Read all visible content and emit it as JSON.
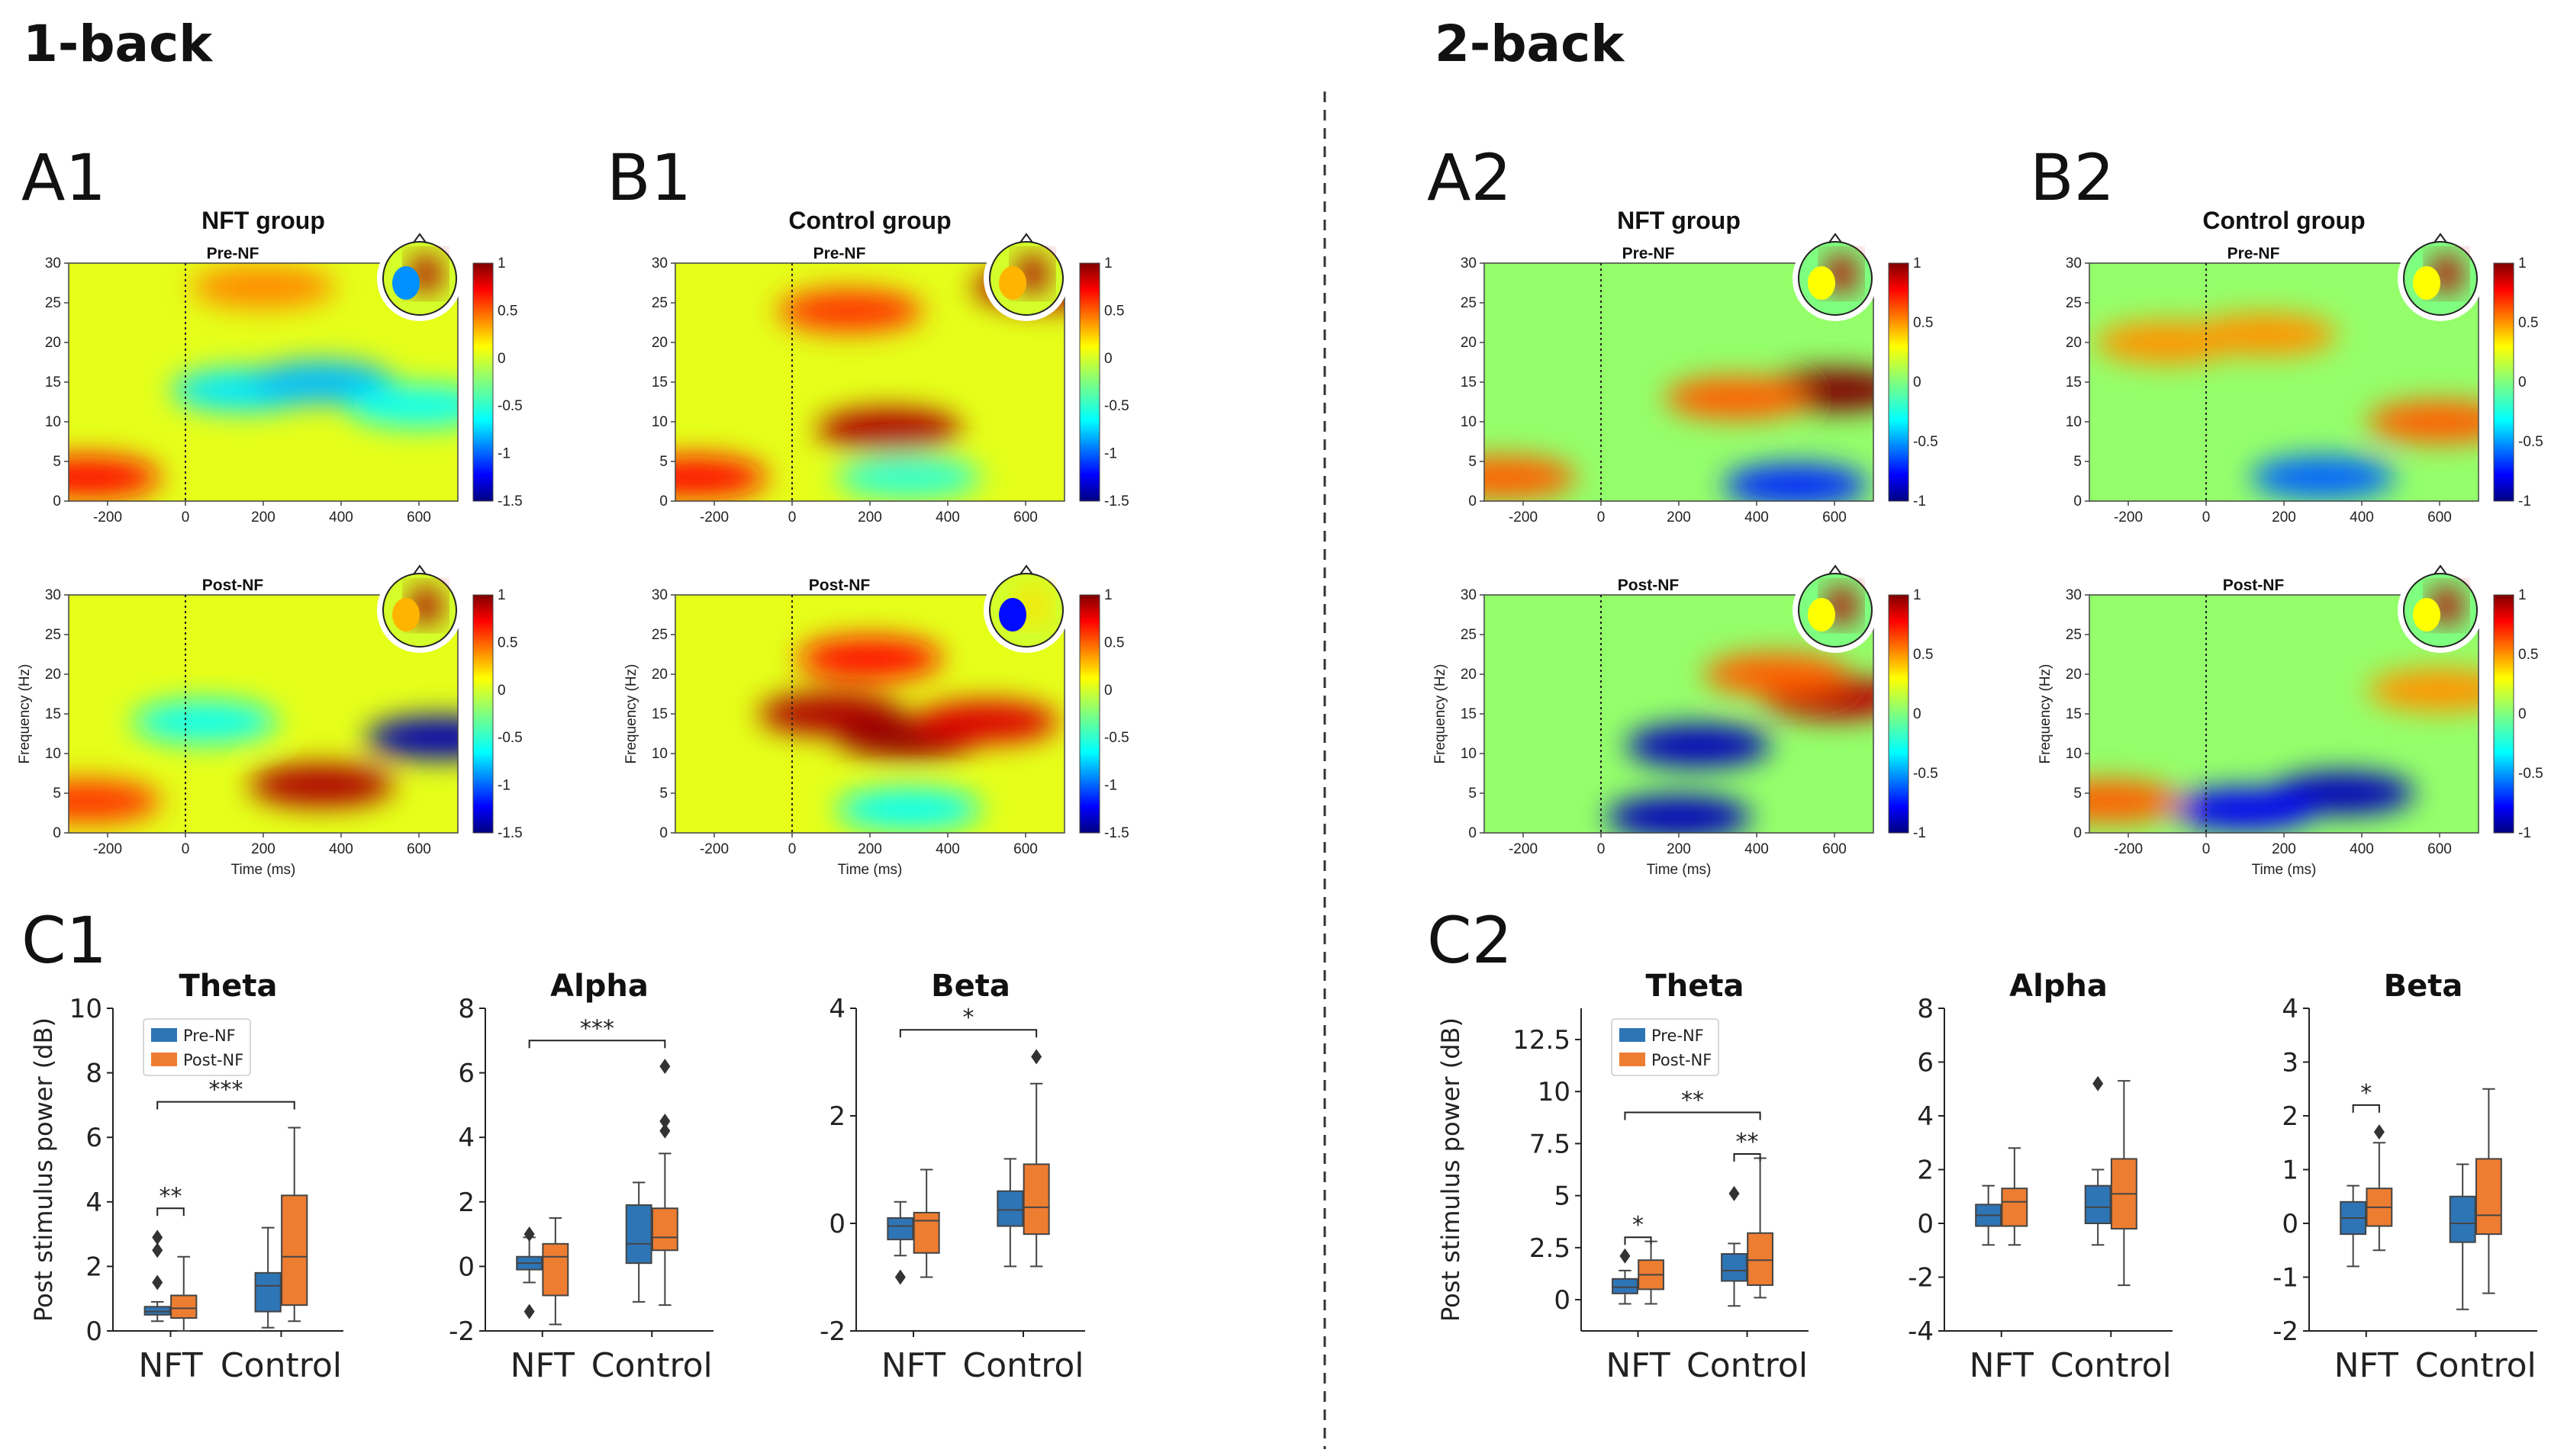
{
  "sections": [
    "1-back",
    "2-back"
  ],
  "colorbar_ticks": {
    "range_1back": [
      "1",
      "0.5",
      "0",
      "-0.5",
      "-1",
      "-1.5"
    ],
    "range_2back": [
      "1",
      "0.5",
      "0",
      "-0.5",
      "-1"
    ]
  },
  "tf_panels": {
    "labels": [
      "A1",
      "B1",
      "A2",
      "B2"
    ],
    "titles": [
      "NFT group",
      "Control group",
      "NFT group",
      "Control group"
    ],
    "row_titles": [
      "Pre-NF",
      "Post-NF"
    ],
    "xlabel": "Time (ms)",
    "ylabel": "Frequency (Hz)",
    "xticks": [
      "-200",
      "0",
      "200",
      "400",
      "600"
    ],
    "yticks": [
      "0",
      "5",
      "10",
      "15",
      "20",
      "25",
      "30"
    ]
  },
  "box_panels": {
    "labels": [
      "C1",
      "C2"
    ],
    "ylabel": "Post stimulus power (dB)",
    "legend": [
      "Pre-NF",
      "Post-NF"
    ],
    "categories": [
      "NFT",
      "Control"
    ],
    "colors": {
      "pre": "#2e75b6",
      "post": "#ed7d31"
    }
  },
  "chart_data": [
    {
      "type": "heatmap",
      "panel": "A1",
      "group": "NFT group",
      "condition": "Pre-NF",
      "task": "1-back",
      "x_range_ms": [
        -300,
        700
      ],
      "y_range_hz": [
        0,
        30
      ],
      "color_range": [
        -1.5,
        1
      ],
      "description_blobs": [
        {
          "t": 150,
          "f": 14,
          "v": -0.7
        },
        {
          "t": 350,
          "f": 15,
          "v": -0.8
        },
        {
          "t": 600,
          "f": 12,
          "v": -0.6
        },
        {
          "t": -250,
          "f": 3,
          "v": 0.7
        },
        {
          "t": 200,
          "f": 27,
          "v": 0.4
        }
      ]
    },
    {
      "type": "heatmap",
      "panel": "A1",
      "group": "NFT group",
      "condition": "Post-NF",
      "task": "1-back",
      "x_range_ms": [
        -300,
        700
      ],
      "y_range_hz": [
        0,
        30
      ],
      "color_range": [
        -1.5,
        1
      ],
      "description_blobs": [
        {
          "t": 350,
          "f": 6,
          "v": 0.9
        },
        {
          "t": 650,
          "f": 12,
          "v": -1.4
        },
        {
          "t": 50,
          "f": 14,
          "v": -0.6
        },
        {
          "t": -250,
          "f": 4,
          "v": 0.6
        }
      ]
    },
    {
      "type": "heatmap",
      "panel": "B1",
      "group": "Control group",
      "condition": "Pre-NF",
      "task": "1-back",
      "x_range_ms": [
        -300,
        700
      ],
      "y_range_hz": [
        0,
        30
      ],
      "color_range": [
        -1.5,
        1
      ],
      "description_blobs": [
        {
          "t": 250,
          "f": 9,
          "v": 0.9
        },
        {
          "t": 150,
          "f": 24,
          "v": 0.6
        },
        {
          "t": 650,
          "f": 27,
          "v": 0.9
        },
        {
          "t": -250,
          "f": 3,
          "v": 0.7
        },
        {
          "t": 300,
          "f": 3,
          "v": -0.5
        }
      ]
    },
    {
      "type": "heatmap",
      "panel": "B1",
      "group": "Control group",
      "condition": "Post-NF",
      "task": "1-back",
      "x_range_ms": [
        -300,
        700
      ],
      "y_range_hz": [
        0,
        30
      ],
      "color_range": [
        -1.5,
        1
      ],
      "description_blobs": [
        {
          "t": 100,
          "f": 15,
          "v": 0.9
        },
        {
          "t": 300,
          "f": 12,
          "v": 0.95
        },
        {
          "t": 500,
          "f": 14,
          "v": 0.8
        },
        {
          "t": 200,
          "f": 22,
          "v": 0.7
        },
        {
          "t": 300,
          "f": 3,
          "v": -0.6
        }
      ]
    },
    {
      "type": "heatmap",
      "panel": "A2",
      "group": "NFT group",
      "condition": "Pre-NF",
      "task": "2-back",
      "x_range_ms": [
        -300,
        700
      ],
      "y_range_hz": [
        0,
        30
      ],
      "color_range": [
        -1,
        1
      ],
      "description_blobs": [
        {
          "t": 600,
          "f": 14,
          "v": 1.0
        },
        {
          "t": 350,
          "f": 13,
          "v": 0.6
        },
        {
          "t": 500,
          "f": 2,
          "v": -0.7
        },
        {
          "t": -250,
          "f": 3,
          "v": 0.6
        }
      ]
    },
    {
      "type": "heatmap",
      "panel": "A2",
      "group": "NFT group",
      "condition": "Post-NF",
      "task": "2-back",
      "x_range_ms": [
        -300,
        700
      ],
      "y_range_hz": [
        0,
        30
      ],
      "color_range": [
        -1,
        1
      ],
      "description_blobs": [
        {
          "t": 250,
          "f": 11,
          "v": -0.9
        },
        {
          "t": 600,
          "f": 17,
          "v": 0.9
        },
        {
          "t": 450,
          "f": 20,
          "v": 0.6
        },
        {
          "t": 200,
          "f": 2,
          "v": -0.9
        }
      ]
    },
    {
      "type": "heatmap",
      "panel": "B2",
      "group": "Control group",
      "condition": "Pre-NF",
      "task": "2-back",
      "x_range_ms": [
        -300,
        700
      ],
      "y_range_hz": [
        0,
        30
      ],
      "color_range": [
        -1,
        1
      ],
      "description_blobs": [
        {
          "t": 600,
          "f": 10,
          "v": 0.6
        },
        {
          "t": -100,
          "f": 20,
          "v": 0.5
        },
        {
          "t": 150,
          "f": 21,
          "v": 0.5
        },
        {
          "t": 300,
          "f": 3,
          "v": -0.6
        }
      ]
    },
    {
      "type": "heatmap",
      "panel": "B2",
      "group": "Control group",
      "condition": "Post-NF",
      "task": "2-back",
      "x_range_ms": [
        -300,
        700
      ],
      "y_range_hz": [
        0,
        30
      ],
      "color_range": [
        -1,
        1
      ],
      "description_blobs": [
        {
          "t": 350,
          "f": 5,
          "v": -0.9
        },
        {
          "t": 100,
          "f": 3,
          "v": -0.8
        },
        {
          "t": 600,
          "f": 18,
          "v": 0.5
        },
        {
          "t": -250,
          "f": 4,
          "v": 0.6
        }
      ]
    },
    {
      "type": "box",
      "panel": "C1",
      "title": "Theta",
      "ylim": [
        0,
        10
      ],
      "yticks": [
        0,
        2,
        4,
        6,
        8,
        10
      ],
      "categories": [
        "NFT",
        "Control"
      ],
      "series": [
        {
          "name": "Pre-NF",
          "boxes": [
            {
              "whislo": 0.3,
              "q1": 0.5,
              "med": 0.6,
              "q3": 0.75,
              "whishi": 0.9,
              "fliers": [
                1.5,
                2.5,
                2.9
              ]
            },
            {
              "whislo": 0.1,
              "q1": 0.6,
              "med": 1.4,
              "q3": 1.8,
              "whishi": 3.2,
              "fliers": []
            }
          ]
        },
        {
          "name": "Post-NF",
          "boxes": [
            {
              "whislo": 0.0,
              "q1": 0.4,
              "med": 0.7,
              "q3": 1.1,
              "whishi": 2.3,
              "fliers": []
            },
            {
              "whislo": 0.3,
              "q1": 0.8,
              "med": 2.3,
              "q3": 4.2,
              "whishi": 6.3,
              "fliers": []
            }
          ]
        }
      ],
      "significance": [
        {
          "label": "**",
          "y": 3.8,
          "from": "NFT-pre",
          "to": "NFT-post"
        },
        {
          "label": "***",
          "y": 7.1,
          "from": "NFT-pre",
          "to": "Control-post"
        }
      ]
    },
    {
      "type": "box",
      "panel": "C1",
      "title": "Alpha",
      "ylim": [
        -2,
        8
      ],
      "yticks": [
        -2,
        0,
        2,
        4,
        6,
        8
      ],
      "categories": [
        "NFT",
        "Control"
      ],
      "series": [
        {
          "name": "Pre-NF",
          "boxes": [
            {
              "whislo": -0.5,
              "q1": -0.1,
              "med": 0.1,
              "q3": 0.3,
              "whishi": 0.9,
              "fliers": [
                -1.4,
                1.0
              ]
            },
            {
              "whislo": -1.1,
              "q1": 0.1,
              "med": 0.7,
              "q3": 1.9,
              "whishi": 2.6,
              "fliers": []
            }
          ]
        },
        {
          "name": "Post-NF",
          "boxes": [
            {
              "whislo": -1.8,
              "q1": -0.9,
              "med": 0.3,
              "q3": 0.7,
              "whishi": 1.5,
              "fliers": []
            },
            {
              "whislo": -1.2,
              "q1": 0.5,
              "med": 0.9,
              "q3": 1.8,
              "whishi": 3.5,
              "fliers": [
                4.2,
                4.5,
                6.2
              ]
            }
          ]
        }
      ],
      "significance": [
        {
          "label": "***",
          "y": 7.0,
          "from": "NFT-pre",
          "to": "Control-post"
        }
      ]
    },
    {
      "type": "box",
      "panel": "C1",
      "title": "Beta",
      "ylim": [
        -2,
        4
      ],
      "yticks": [
        -2,
        0,
        2,
        4
      ],
      "categories": [
        "NFT",
        "Control"
      ],
      "series": [
        {
          "name": "Pre-NF",
          "boxes": [
            {
              "whislo": -0.6,
              "q1": -0.3,
              "med": -0.05,
              "q3": 0.1,
              "whishi": 0.4,
              "fliers": [
                -1.0
              ]
            },
            {
              "whislo": -0.8,
              "q1": -0.05,
              "med": 0.25,
              "q3": 0.6,
              "whishi": 1.2,
              "fliers": []
            }
          ]
        },
        {
          "name": "Post-NF",
          "boxes": [
            {
              "whislo": -1.0,
              "q1": -0.55,
              "med": 0.05,
              "q3": 0.2,
              "whishi": 1.0,
              "fliers": []
            },
            {
              "whislo": -0.8,
              "q1": -0.2,
              "med": 0.3,
              "q3": 1.1,
              "whishi": 2.6,
              "fliers": [
                3.1
              ]
            }
          ]
        }
      ],
      "significance": [
        {
          "label": "*",
          "y": 3.6,
          "from": "NFT-pre",
          "to": "Control-post"
        }
      ]
    },
    {
      "type": "box",
      "panel": "C2",
      "title": "Theta",
      "ylim": [
        -1.5,
        14
      ],
      "yticks": [
        0.0,
        2.5,
        5.0,
        7.5,
        10.0,
        12.5
      ],
      "categories": [
        "NFT",
        "Control"
      ],
      "series": [
        {
          "name": "Pre-NF",
          "boxes": [
            {
              "whislo": -0.2,
              "q1": 0.3,
              "med": 0.6,
              "q3": 1.0,
              "whishi": 1.4,
              "fliers": [
                2.1
              ]
            },
            {
              "whislo": -0.3,
              "q1": 0.9,
              "med": 1.4,
              "q3": 2.2,
              "whishi": 2.7,
              "fliers": [
                5.1
              ]
            }
          ]
        },
        {
          "name": "Post-NF",
          "boxes": [
            {
              "whislo": -0.2,
              "q1": 0.5,
              "med": 1.2,
              "q3": 1.9,
              "whishi": 2.8,
              "fliers": []
            },
            {
              "whislo": 0.1,
              "q1": 0.7,
              "med": 1.9,
              "q3": 3.2,
              "whishi": 6.8,
              "fliers": []
            }
          ]
        }
      ],
      "significance": [
        {
          "label": "*",
          "y": 3.0,
          "from": "NFT-pre",
          "to": "NFT-post"
        },
        {
          "label": "**",
          "y": 7.0,
          "from": "Control-pre",
          "to": "Control-post"
        },
        {
          "label": "**",
          "y": 9.0,
          "from": "NFT-pre",
          "to": "Control-post"
        }
      ]
    },
    {
      "type": "box",
      "panel": "C2",
      "title": "Alpha",
      "ylim": [
        -4,
        8
      ],
      "yticks": [
        -4,
        -2,
        0,
        2,
        4,
        6,
        8
      ],
      "categories": [
        "NFT",
        "Control"
      ],
      "series": [
        {
          "name": "Pre-NF",
          "boxes": [
            {
              "whislo": -0.8,
              "q1": -0.1,
              "med": 0.3,
              "q3": 0.7,
              "whishi": 1.4,
              "fliers": []
            },
            {
              "whislo": -0.8,
              "q1": 0.0,
              "med": 0.6,
              "q3": 1.4,
              "whishi": 2.0,
              "fliers": [
                5.2
              ]
            }
          ]
        },
        {
          "name": "Post-NF",
          "boxes": [
            {
              "whislo": -0.8,
              "q1": -0.1,
              "med": 0.8,
              "q3": 1.3,
              "whishi": 2.8,
              "fliers": []
            },
            {
              "whislo": -2.3,
              "q1": -0.2,
              "med": 1.1,
              "q3": 2.4,
              "whishi": 5.3,
              "fliers": []
            }
          ]
        }
      ],
      "significance": []
    },
    {
      "type": "box",
      "panel": "C2",
      "title": "Beta",
      "ylim": [
        -2,
        4
      ],
      "yticks": [
        -2,
        -1,
        0,
        1,
        2,
        3,
        4
      ],
      "categories": [
        "NFT",
        "Control"
      ],
      "series": [
        {
          "name": "Pre-NF",
          "boxes": [
            {
              "whislo": -0.8,
              "q1": -0.2,
              "med": 0.1,
              "q3": 0.4,
              "whishi": 0.7,
              "fliers": []
            },
            {
              "whislo": -1.6,
              "q1": -0.35,
              "med": 0.0,
              "q3": 0.5,
              "whishi": 1.1,
              "fliers": []
            }
          ]
        },
        {
          "name": "Post-NF",
          "boxes": [
            {
              "whislo": -0.5,
              "q1": -0.05,
              "med": 0.3,
              "q3": 0.65,
              "whishi": 1.5,
              "fliers": [
                1.7
              ]
            },
            {
              "whislo": -1.3,
              "q1": -0.2,
              "med": 0.15,
              "q3": 1.2,
              "whishi": 2.5,
              "fliers": []
            }
          ]
        }
      ],
      "significance": [
        {
          "label": "*",
          "y": 2.2,
          "from": "NFT-pre",
          "to": "NFT-post"
        }
      ]
    }
  ]
}
